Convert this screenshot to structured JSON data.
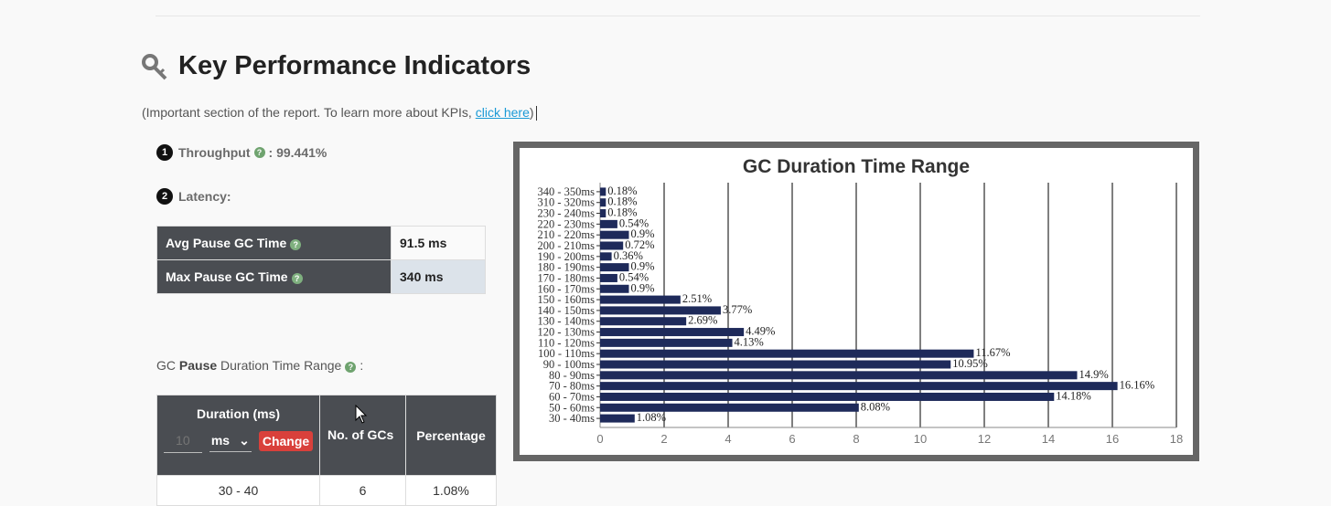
{
  "kpi": {
    "title": "Key Performance Indicators",
    "intro_text": "(Important section of the report. To learn more about KPIs, ",
    "intro_link": "click here",
    "intro_close": ")"
  },
  "throughput": {
    "num": "1",
    "label": "Throughput",
    "value": ": 99.441%"
  },
  "latency": {
    "num": "2",
    "label": "Latency:"
  },
  "pause_table": [
    {
      "label": "Avg Pause GC Time",
      "value": "91.5 ms"
    },
    {
      "label": "Max Pause GC Time",
      "value": "340 ms"
    }
  ],
  "gc_range": {
    "prefix": "GC ",
    "bold": "Pause",
    "suffix": " Duration Time Range",
    "tail": ":"
  },
  "duration_table": {
    "col_duration": "Duration (ms)",
    "input_placeholder": "10",
    "unit_value": "ms",
    "change_label": "Change",
    "col_count": "No. of GCs",
    "col_percentage": "Percentage",
    "row": {
      "duration": "30 - 40",
      "count": "6",
      "percentage": "1.08%"
    }
  },
  "colors": {
    "bar": "#1e2a5a",
    "frame": "#666666",
    "header": "#4a4d52",
    "link": "#1a9ad6",
    "change": "#d9403b"
  },
  "chart_data": {
    "type": "bar",
    "orientation": "horizontal",
    "title": "GC Duration Time Range",
    "categories": [
      "340 - 350ms",
      "310 - 320ms",
      "230 - 240ms",
      "220 - 230ms",
      "210 - 220ms",
      "200 - 210ms",
      "190 - 200ms",
      "180 - 190ms",
      "170 - 180ms",
      "160 - 170ms",
      "150 - 160ms",
      "140 - 150ms",
      "130 - 140ms",
      "120 - 130ms",
      "110 - 120ms",
      "100 - 110ms",
      "90 - 100ms",
      "80 - 90ms",
      "70 - 80ms",
      "60 - 70ms",
      "50 - 60ms",
      "30 - 40ms"
    ],
    "values": [
      0.18,
      0.18,
      0.18,
      0.54,
      0.9,
      0.72,
      0.36,
      0.9,
      0.54,
      0.9,
      2.51,
      3.77,
      2.69,
      4.49,
      4.13,
      11.67,
      10.95,
      14.9,
      16.16,
      14.18,
      8.08,
      1.08
    ],
    "value_labels": [
      "0.18%",
      "0.18%",
      "0.18%",
      "0.54%",
      "0.9%",
      "0.72%",
      "0.36%",
      "0.9%",
      "0.54%",
      "0.9%",
      "2.51%",
      "3.77%",
      "2.69%",
      "4.49%",
      "4.13%",
      "11.67%",
      "10.95%",
      "14.9%",
      "16.16%",
      "14.18%",
      "8.08%",
      "1.08%"
    ],
    "x_ticks": [
      "0",
      "2",
      "4",
      "6",
      "8",
      "10",
      "12",
      "14",
      "16",
      "18"
    ],
    "xlim": [
      0,
      18
    ],
    "grid": true
  }
}
